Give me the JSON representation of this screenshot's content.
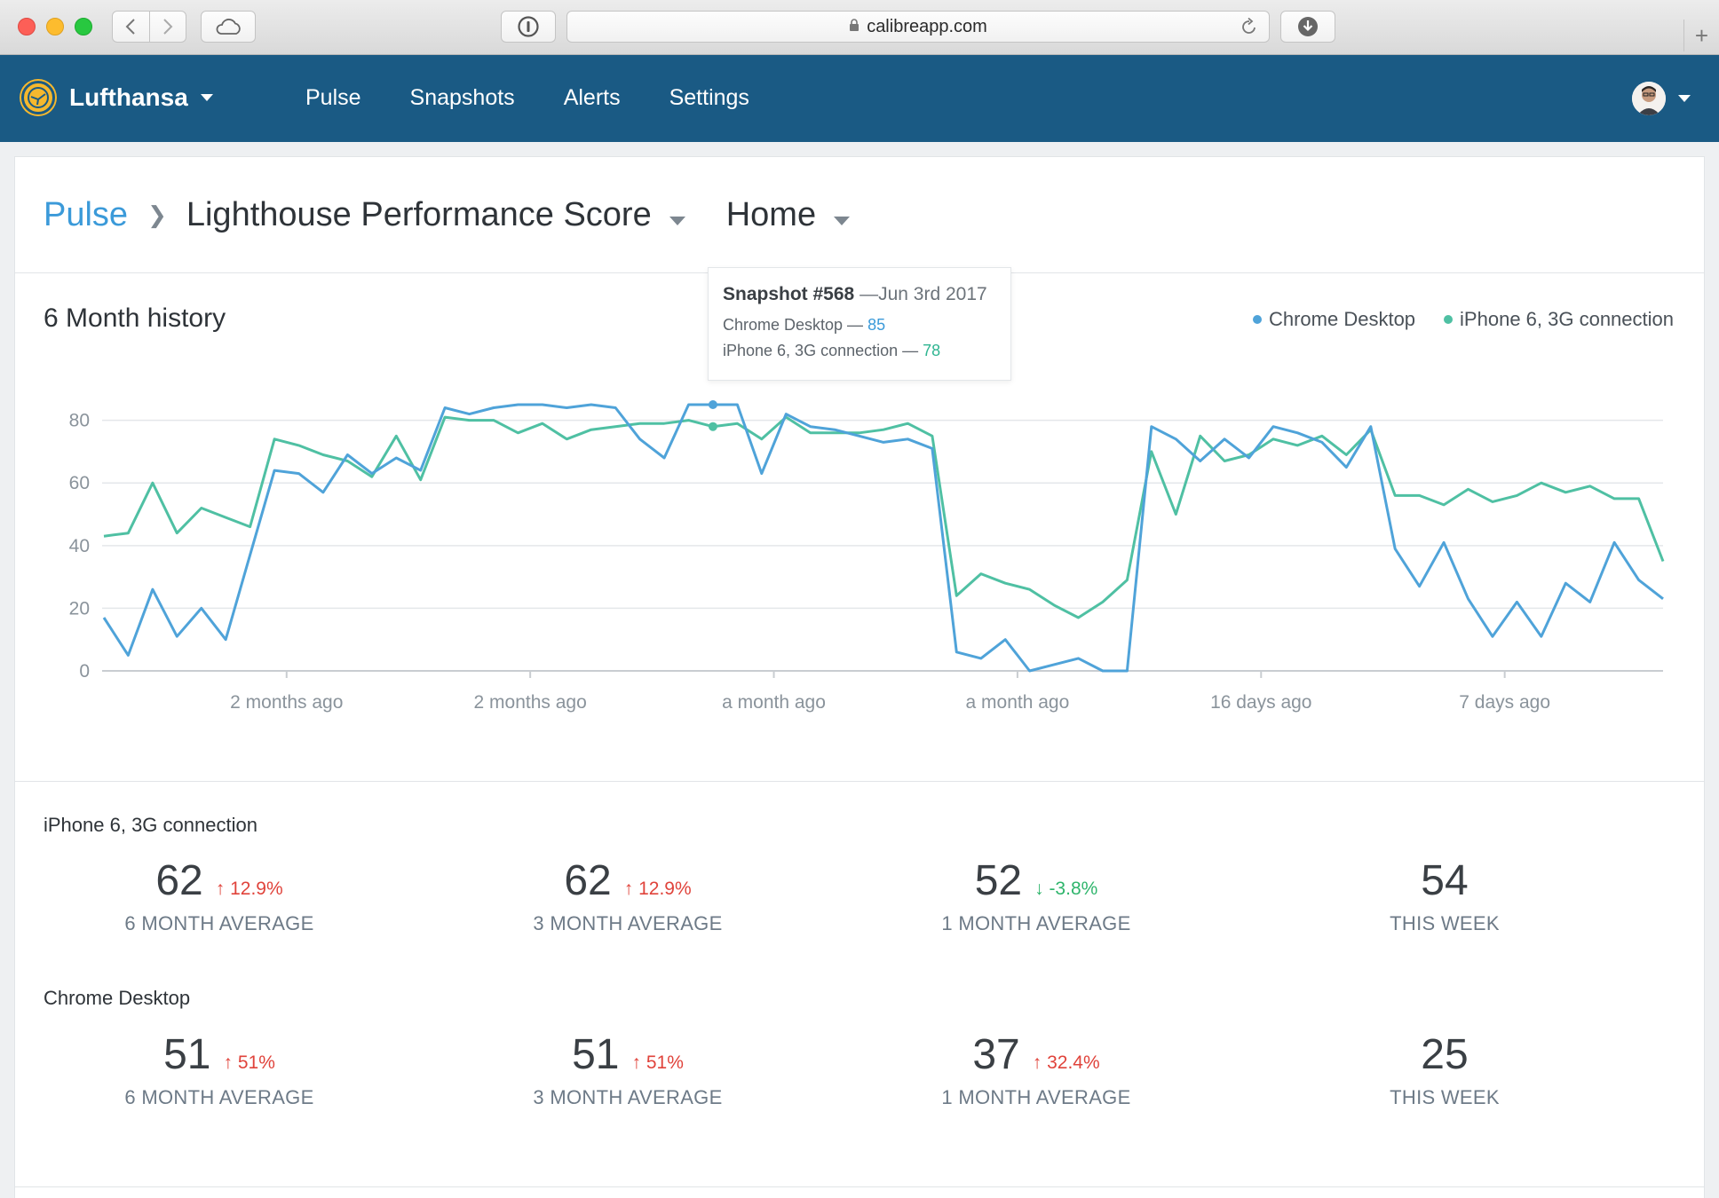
{
  "browser": {
    "url": "calibreapp.com"
  },
  "header": {
    "brand": "Lufthansa",
    "nav": [
      "Pulse",
      "Snapshots",
      "Alerts",
      "Settings"
    ]
  },
  "breadcrumb": {
    "root": "Pulse",
    "metric": "Lighthouse Performance Score",
    "page": "Home"
  },
  "history": {
    "title": "6 Month history",
    "legend": [
      {
        "name": "Chrome Desktop",
        "color": "#4fa3d9"
      },
      {
        "name": "iPhone 6, 3G connection",
        "color": "#4fc0a3"
      }
    ]
  },
  "tooltip": {
    "title": "Snapshot #568",
    "date": "—Jun 3rd 2017",
    "rows": [
      {
        "label": "Chrome Desktop — ",
        "value": "85",
        "color": "#3b9ad9"
      },
      {
        "label": "iPhone 6, 3G connection — ",
        "value": "78",
        "color": "#2fb591"
      }
    ]
  },
  "chart_data": {
    "type": "line",
    "ylim": [
      0,
      85
    ],
    "yticks": [
      0,
      20,
      40,
      60,
      80
    ],
    "xtick_labels": [
      "2 months ago",
      "2 months ago",
      "a month ago",
      "a month ago",
      "16 days ago",
      "7 days ago"
    ],
    "xtick_positions": [
      7.5,
      17.5,
      27.5,
      37.5,
      47.5,
      57.5
    ],
    "grid": true,
    "highlight_index": 25,
    "series": [
      {
        "name": "Chrome Desktop",
        "color": "#4fa3d9",
        "values": [
          17,
          5,
          26,
          11,
          20,
          10,
          37,
          64,
          63,
          57,
          69,
          63,
          68,
          64,
          84,
          82,
          84,
          85,
          85,
          84,
          85,
          84,
          74,
          68,
          85,
          85,
          85,
          63,
          82,
          78,
          77,
          75,
          73,
          74,
          71,
          6,
          4,
          10,
          0,
          2,
          4,
          0,
          0,
          78,
          74,
          67,
          74,
          68,
          78,
          76,
          73,
          65,
          78,
          39,
          27,
          41,
          23,
          11,
          22,
          11,
          28,
          22,
          41,
          29,
          23
        ]
      },
      {
        "name": "iPhone 6, 3G connection",
        "color": "#4fc0a3",
        "values": [
          43,
          44,
          60,
          44,
          52,
          49,
          46,
          74,
          72,
          69,
          67,
          62,
          75,
          61,
          81,
          80,
          80,
          76,
          79,
          74,
          77,
          78,
          79,
          79,
          80,
          78,
          79,
          74,
          81,
          76,
          76,
          76,
          77,
          79,
          75,
          24,
          31,
          28,
          26,
          21,
          17,
          22,
          29,
          70,
          50,
          75,
          67,
          69,
          74,
          72,
          75,
          69,
          77,
          56,
          56,
          53,
          58,
          54,
          56,
          60,
          57,
          59,
          55,
          55,
          35
        ]
      }
    ]
  },
  "stats": [
    {
      "label": "iPhone 6, 3G connection",
      "items": [
        {
          "value": "62",
          "change": "12.9%",
          "dir": "up",
          "label": "6 MONTH AVERAGE"
        },
        {
          "value": "62",
          "change": "12.9%",
          "dir": "up",
          "label": "3 MONTH AVERAGE"
        },
        {
          "value": "52",
          "change": "-3.8%",
          "dir": "down",
          "label": "1 MONTH AVERAGE"
        },
        {
          "value": "54",
          "change": "",
          "dir": "",
          "label": "THIS WEEK"
        }
      ]
    },
    {
      "label": "Chrome Desktop",
      "items": [
        {
          "value": "51",
          "change": "51%",
          "dir": "up",
          "label": "6 MONTH AVERAGE"
        },
        {
          "value": "51",
          "change": "51%",
          "dir": "up",
          "label": "3 MONTH AVERAGE"
        },
        {
          "value": "37",
          "change": "32.4%",
          "dir": "up",
          "label": "1 MONTH AVERAGE"
        },
        {
          "value": "25",
          "change": "",
          "dir": "",
          "label": "THIS WEEK"
        }
      ]
    }
  ]
}
